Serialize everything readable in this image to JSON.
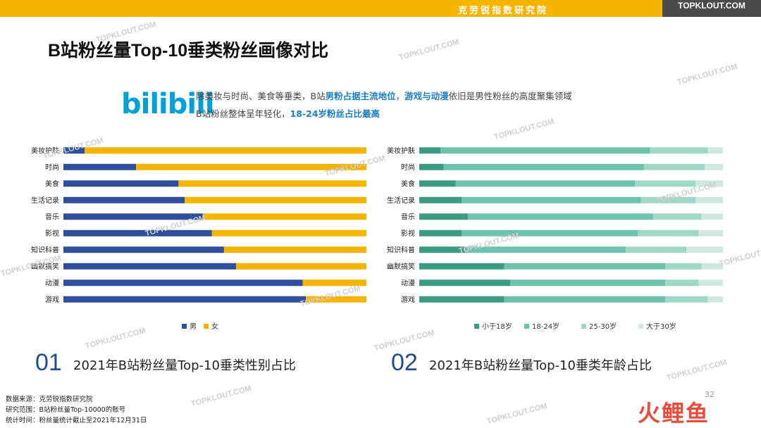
{
  "header": {
    "org_name": "克劳锐指数研究院",
    "brand": "TOPKLOUT.COM"
  },
  "page_title": "B站粉丝量Top-10垂类粉丝画像对比",
  "logo_text": "bilibili",
  "summary": {
    "line1": [
      "除美妆与时尚、美食等垂类，B站",
      "男粉占据主流地位",
      "，",
      "游戏与动漫",
      "依旧是男性粉丝的高度聚集领域"
    ],
    "line2": [
      "B站粉丝整体呈年轻化，",
      "18-24岁粉丝占比最高"
    ]
  },
  "watermark": "TOPKLOUT.COM",
  "chart_data": [
    {
      "type": "bar",
      "orientation": "horizontal",
      "stacked": true,
      "categories": [
        "美妆护肤",
        "时尚",
        "美食",
        "生活记录",
        "音乐",
        "影视",
        "知识科普",
        "幽默搞笑",
        "动漫",
        "游戏"
      ],
      "series": [
        {
          "name": "男",
          "color": "#2f4f9c",
          "values": [
            0.07,
            0.24,
            0.38,
            0.4,
            0.46,
            0.49,
            0.53,
            0.57,
            0.79,
            0.8
          ]
        },
        {
          "name": "女",
          "color": "#f4b400",
          "values": [
            0.93,
            0.76,
            0.62,
            0.6,
            0.54,
            0.51,
            0.47,
            0.43,
            0.21,
            0.2
          ]
        }
      ],
      "xlim": [
        0,
        1
      ],
      "legend": "bottom"
    },
    {
      "type": "bar",
      "orientation": "horizontal",
      "stacked": true,
      "categories": [
        "美妆护肤",
        "时尚",
        "美食",
        "生活记录",
        "音乐",
        "影视",
        "知识科普",
        "幽默搞笑",
        "动漫",
        "游戏"
      ],
      "series": [
        {
          "name": "小于18岁",
          "color": "#3d9b84",
          "values": [
            0.07,
            0.08,
            0.12,
            0.14,
            0.16,
            0.14,
            0.15,
            0.28,
            0.3,
            0.28
          ]
        },
        {
          "name": "18-24岁",
          "color": "#6cc2ac",
          "values": [
            0.69,
            0.66,
            0.59,
            0.59,
            0.61,
            0.58,
            0.53,
            0.53,
            0.51,
            0.53
          ]
        },
        {
          "name": "25-30岁",
          "color": "#9fd8c9",
          "values": [
            0.19,
            0.2,
            0.2,
            0.18,
            0.16,
            0.2,
            0.2,
            0.12,
            0.11,
            0.14
          ]
        },
        {
          "name": "大于30岁",
          "color": "#cfe9e1",
          "values": [
            0.05,
            0.06,
            0.09,
            0.09,
            0.07,
            0.08,
            0.12,
            0.07,
            0.08,
            0.05
          ]
        }
      ],
      "xlim": [
        0,
        1
      ],
      "legend": "bottom"
    }
  ],
  "captions": [
    {
      "num": "01",
      "text": "2021年B站粉丝量Top-10垂类性别占比"
    },
    {
      "num": "02",
      "text": "2021年B站粉丝量Top-10垂类年龄占比"
    }
  ],
  "footer": {
    "source": "数据来源：克劳锐指数研究院",
    "scope": "研究范围：B站粉丝量Top-10000的账号",
    "time": "统计时间：粉丝量统计截止至2021年12月31日"
  },
  "page_number": "32",
  "corner_logo": "火鲤鱼"
}
